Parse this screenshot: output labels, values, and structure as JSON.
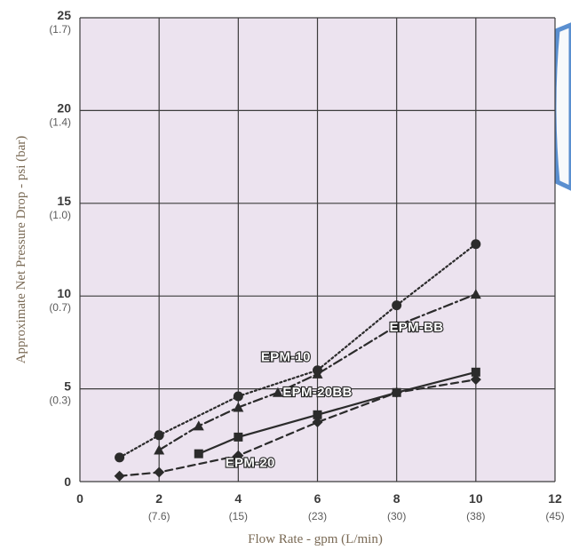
{
  "colors": {
    "plot_background": "#ece3ef",
    "grid": "#3c3c3c",
    "series_line": "#2b2b2b",
    "axis_label": "#7a6a55",
    "cartridge_fill": "#f7f9fb",
    "cartridge_outline": "#5a8fd0"
  },
  "chart_data": {
    "type": "line",
    "xlabel": "Flow Rate - gpm (L/min)",
    "ylabel": "Approximate Net Pressure Drop - psi (bar)",
    "xlim": [
      0,
      12
    ],
    "ylim": [
      0,
      25
    ],
    "grid": true,
    "x_ticks": [
      {
        "value": 0,
        "label": "0",
        "sub": ""
      },
      {
        "value": 2,
        "label": "2",
        "sub": "(7.6)"
      },
      {
        "value": 4,
        "label": "4",
        "sub": "(15)"
      },
      {
        "value": 6,
        "label": "6",
        "sub": "(23)"
      },
      {
        "value": 8,
        "label": "8",
        "sub": "(30)"
      },
      {
        "value": 10,
        "label": "10",
        "sub": "(38)"
      },
      {
        "value": 12,
        "label": "12",
        "sub": "(45)"
      }
    ],
    "y_ticks": [
      {
        "value": 0,
        "label": "0",
        "sub": ""
      },
      {
        "value": 5,
        "label": "5",
        "sub": "(0.3)"
      },
      {
        "value": 10,
        "label": "10",
        "sub": "(0.7)"
      },
      {
        "value": 15,
        "label": "15",
        "sub": "(1.0)"
      },
      {
        "value": 20,
        "label": "20",
        "sub": "(1.4)"
      },
      {
        "value": 25,
        "label": "25",
        "sub": "(1.7)"
      }
    ],
    "series": [
      {
        "name": "EPM-10",
        "marker": "circle",
        "dash": "dotted",
        "points": [
          [
            1,
            1.3
          ],
          [
            2,
            2.5
          ],
          [
            4,
            4.6
          ],
          [
            6,
            6.0
          ],
          [
            8,
            9.5
          ],
          [
            10,
            12.8
          ]
        ],
        "label_at": [
          5.2,
          6.5
        ]
      },
      {
        "name": "EPM-BB",
        "marker": "triangle",
        "dash": "dashdot",
        "points": [
          [
            2,
            1.7
          ],
          [
            3,
            3.0
          ],
          [
            4,
            4.0
          ],
          [
            5,
            4.8
          ],
          [
            6,
            5.8
          ],
          [
            8,
            8.4
          ],
          [
            10,
            10.1
          ]
        ],
        "label_at": [
          8.5,
          8.1
        ]
      },
      {
        "name": "EPM-20BB",
        "marker": "square",
        "dash": "solid",
        "points": [
          [
            3,
            1.5
          ],
          [
            4,
            2.4
          ],
          [
            6,
            3.6
          ],
          [
            8,
            4.8
          ],
          [
            10,
            5.9
          ]
        ],
        "label_at": [
          6.0,
          4.6
        ]
      },
      {
        "name": "EPM-20",
        "marker": "diamond",
        "dash": "dashed",
        "points": [
          [
            1,
            0.3
          ],
          [
            2,
            0.5
          ],
          [
            4,
            1.4
          ],
          [
            6,
            3.2
          ],
          [
            8,
            4.8
          ],
          [
            10,
            5.5
          ]
        ],
        "label_at": [
          4.3,
          0.8
        ]
      }
    ]
  }
}
